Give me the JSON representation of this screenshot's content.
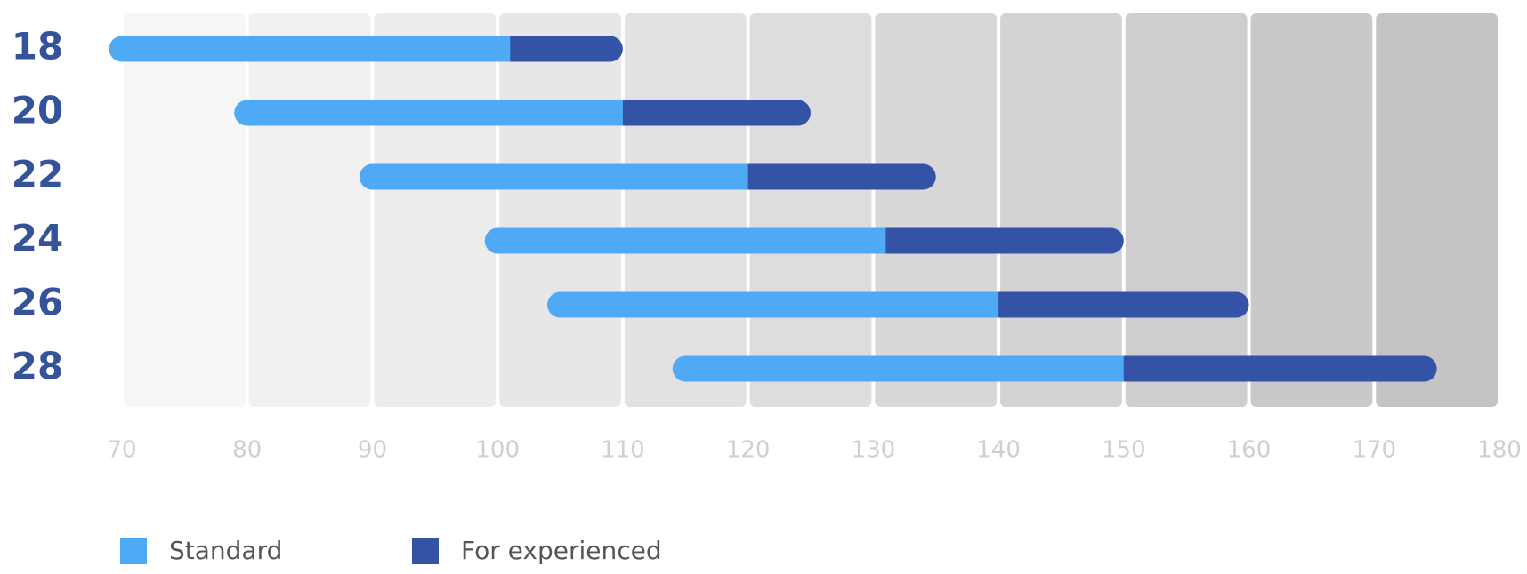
{
  "chart_data": {
    "type": "range-bar",
    "categories": [
      "18",
      "20",
      "22",
      "24",
      "26",
      "28"
    ],
    "series": [
      {
        "name": "Standard",
        "color": "#4eaaf5",
        "low": [
          70,
          80,
          90,
          100,
          105,
          115
        ],
        "high": [
          101,
          110,
          120,
          131,
          140,
          150
        ]
      },
      {
        "name": "For experienced",
        "color": "#3452a6",
        "low": [
          101,
          110,
          120,
          131,
          140,
          150
        ],
        "high": [
          110,
          125,
          135,
          150,
          160,
          175
        ]
      }
    ],
    "xlim": [
      70,
      180
    ],
    "xticks": [
      70,
      80,
      90,
      100,
      110,
      120,
      130,
      140,
      150,
      160,
      170,
      180
    ],
    "legend": "bottom-left"
  }
}
